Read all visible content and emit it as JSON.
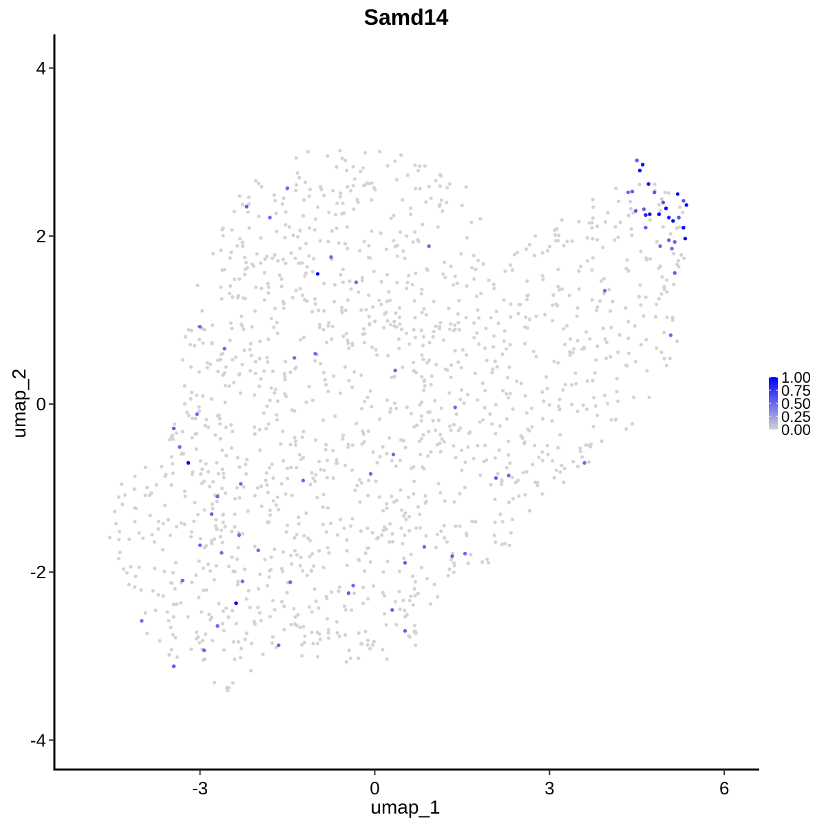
{
  "chart_data": {
    "type": "scatter",
    "title": "Samd14",
    "xlabel": "umap_1",
    "ylabel": "umap_2",
    "xlim": [
      -5.5,
      6.6
    ],
    "ylim": [
      -4.35,
      4.4
    ],
    "xticks": [
      -3,
      0,
      3,
      6
    ],
    "xtick_labels": [
      "-3",
      "0",
      "3",
      "6"
    ],
    "yticks": [
      -4,
      -2,
      0,
      2,
      4
    ],
    "ytick_labels": [
      "-4",
      "-2",
      "0",
      "2",
      "4"
    ],
    "grid": false,
    "colors": {
      "low": "#d3d3d3",
      "high": "#0000ff"
    },
    "legend": {
      "placement": "right",
      "breaks": [
        1.0,
        0.75,
        0.5,
        0.25,
        0.0
      ],
      "labels": [
        "1.00",
        "0.75",
        "0.50",
        "0.25",
        "0.00"
      ]
    },
    "background_point_count": 1500,
    "background_point_value": 0.0,
    "expressing_points": [
      {
        "x": 4.5,
        "y": 2.9,
        "v": 0.55
      },
      {
        "x": 4.6,
        "y": 2.85,
        "v": 0.95
      },
      {
        "x": 4.55,
        "y": 2.78,
        "v": 1.0
      },
      {
        "x": 4.7,
        "y": 2.62,
        "v": 0.9
      },
      {
        "x": 4.8,
        "y": 2.52,
        "v": 0.6
      },
      {
        "x": 4.35,
        "y": 2.52,
        "v": 0.5
      },
      {
        "x": 4.42,
        "y": 2.53,
        "v": 0.55
      },
      {
        "x": 4.95,
        "y": 2.4,
        "v": 0.6
      },
      {
        "x": 5.2,
        "y": 2.5,
        "v": 0.95
      },
      {
        "x": 5.3,
        "y": 2.42,
        "v": 0.6
      },
      {
        "x": 5.35,
        "y": 2.37,
        "v": 0.95
      },
      {
        "x": 5.0,
        "y": 2.33,
        "v": 0.95
      },
      {
        "x": 4.48,
        "y": 2.3,
        "v": 0.6
      },
      {
        "x": 4.62,
        "y": 2.32,
        "v": 0.55
      },
      {
        "x": 4.65,
        "y": 2.25,
        "v": 0.85
      },
      {
        "x": 4.72,
        "y": 2.26,
        "v": 0.95
      },
      {
        "x": 4.88,
        "y": 2.26,
        "v": 1.0
      },
      {
        "x": 5.05,
        "y": 2.22,
        "v": 0.9
      },
      {
        "x": 5.12,
        "y": 2.18,
        "v": 1.0
      },
      {
        "x": 5.22,
        "y": 2.22,
        "v": 0.6
      },
      {
        "x": 4.65,
        "y": 2.1,
        "v": 0.55
      },
      {
        "x": 5.3,
        "y": 2.1,
        "v": 0.95
      },
      {
        "x": 5.33,
        "y": 1.97,
        "v": 1.0
      },
      {
        "x": 5.05,
        "y": 1.95,
        "v": 0.55
      },
      {
        "x": 5.15,
        "y": 1.93,
        "v": 0.5
      },
      {
        "x": 4.9,
        "y": 1.88,
        "v": 0.5
      },
      {
        "x": 5.1,
        "y": 1.85,
        "v": 0.5
      },
      {
        "x": 5.15,
        "y": 1.56,
        "v": 0.55
      },
      {
        "x": 3.95,
        "y": 1.35,
        "v": 0.5
      },
      {
        "x": 5.08,
        "y": 0.82,
        "v": 0.5
      },
      {
        "x": -1.5,
        "y": 2.57,
        "v": 0.5
      },
      {
        "x": -2.2,
        "y": 2.35,
        "v": 0.55
      },
      {
        "x": -1.8,
        "y": 2.22,
        "v": 0.5
      },
      {
        "x": 0.93,
        "y": 1.88,
        "v": 0.5
      },
      {
        "x": -0.75,
        "y": 1.75,
        "v": 0.5
      },
      {
        "x": -0.98,
        "y": 1.55,
        "v": 1.0
      },
      {
        "x": -0.32,
        "y": 1.45,
        "v": 0.5
      },
      {
        "x": -3.0,
        "y": 0.92,
        "v": 0.5
      },
      {
        "x": -2.58,
        "y": 0.66,
        "v": 0.5
      },
      {
        "x": -1.38,
        "y": 0.55,
        "v": 0.5
      },
      {
        "x": -1.02,
        "y": 0.6,
        "v": 0.5
      },
      {
        "x": 0.35,
        "y": 0.4,
        "v": 0.5
      },
      {
        "x": 1.38,
        "y": -0.04,
        "v": 0.5
      },
      {
        "x": -3.05,
        "y": -0.12,
        "v": 0.5
      },
      {
        "x": -3.45,
        "y": -0.29,
        "v": 0.55
      },
      {
        "x": -3.35,
        "y": -0.51,
        "v": 0.5
      },
      {
        "x": -3.2,
        "y": -0.7,
        "v": 1.0
      },
      {
        "x": 0.32,
        "y": -0.6,
        "v": 0.5
      },
      {
        "x": 3.6,
        "y": -0.7,
        "v": 0.5
      },
      {
        "x": -0.07,
        "y": -0.83,
        "v": 0.5
      },
      {
        "x": 2.3,
        "y": -0.85,
        "v": 0.5
      },
      {
        "x": 2.08,
        "y": -0.88,
        "v": 0.55
      },
      {
        "x": -1.23,
        "y": -0.91,
        "v": 0.5
      },
      {
        "x": -2.3,
        "y": -0.95,
        "v": 0.5
      },
      {
        "x": -2.7,
        "y": -1.1,
        "v": 0.5
      },
      {
        "x": -2.8,
        "y": -1.31,
        "v": 0.55
      },
      {
        "x": -2.33,
        "y": -1.56,
        "v": 0.5
      },
      {
        "x": -3.0,
        "y": -1.68,
        "v": 0.5
      },
      {
        "x": 0.85,
        "y": -1.7,
        "v": 0.5
      },
      {
        "x": -2.0,
        "y": -1.74,
        "v": 0.5
      },
      {
        "x": -2.63,
        "y": -1.77,
        "v": 0.5
      },
      {
        "x": 1.33,
        "y": -1.81,
        "v": 0.55
      },
      {
        "x": 1.55,
        "y": -1.78,
        "v": 0.5
      },
      {
        "x": 0.52,
        "y": -1.89,
        "v": 0.55
      },
      {
        "x": -3.3,
        "y": -2.1,
        "v": 0.5
      },
      {
        "x": -1.45,
        "y": -2.12,
        "v": 0.5
      },
      {
        "x": -2.27,
        "y": -2.11,
        "v": 0.5
      },
      {
        "x": -0.37,
        "y": -2.16,
        "v": 0.5
      },
      {
        "x": -0.45,
        "y": -2.25,
        "v": 0.55
      },
      {
        "x": -2.38,
        "y": -2.37,
        "v": 1.0
      },
      {
        "x": 0.3,
        "y": -2.45,
        "v": 0.55
      },
      {
        "x": -4.0,
        "y": -2.58,
        "v": 0.5
      },
      {
        "x": -2.7,
        "y": -2.64,
        "v": 0.5
      },
      {
        "x": 0.52,
        "y": -2.7,
        "v": 0.55
      },
      {
        "x": -1.65,
        "y": -2.87,
        "v": 0.5
      },
      {
        "x": -2.93,
        "y": -2.93,
        "v": 0.5
      },
      {
        "x": -3.45,
        "y": -3.12,
        "v": 0.55
      }
    ]
  }
}
